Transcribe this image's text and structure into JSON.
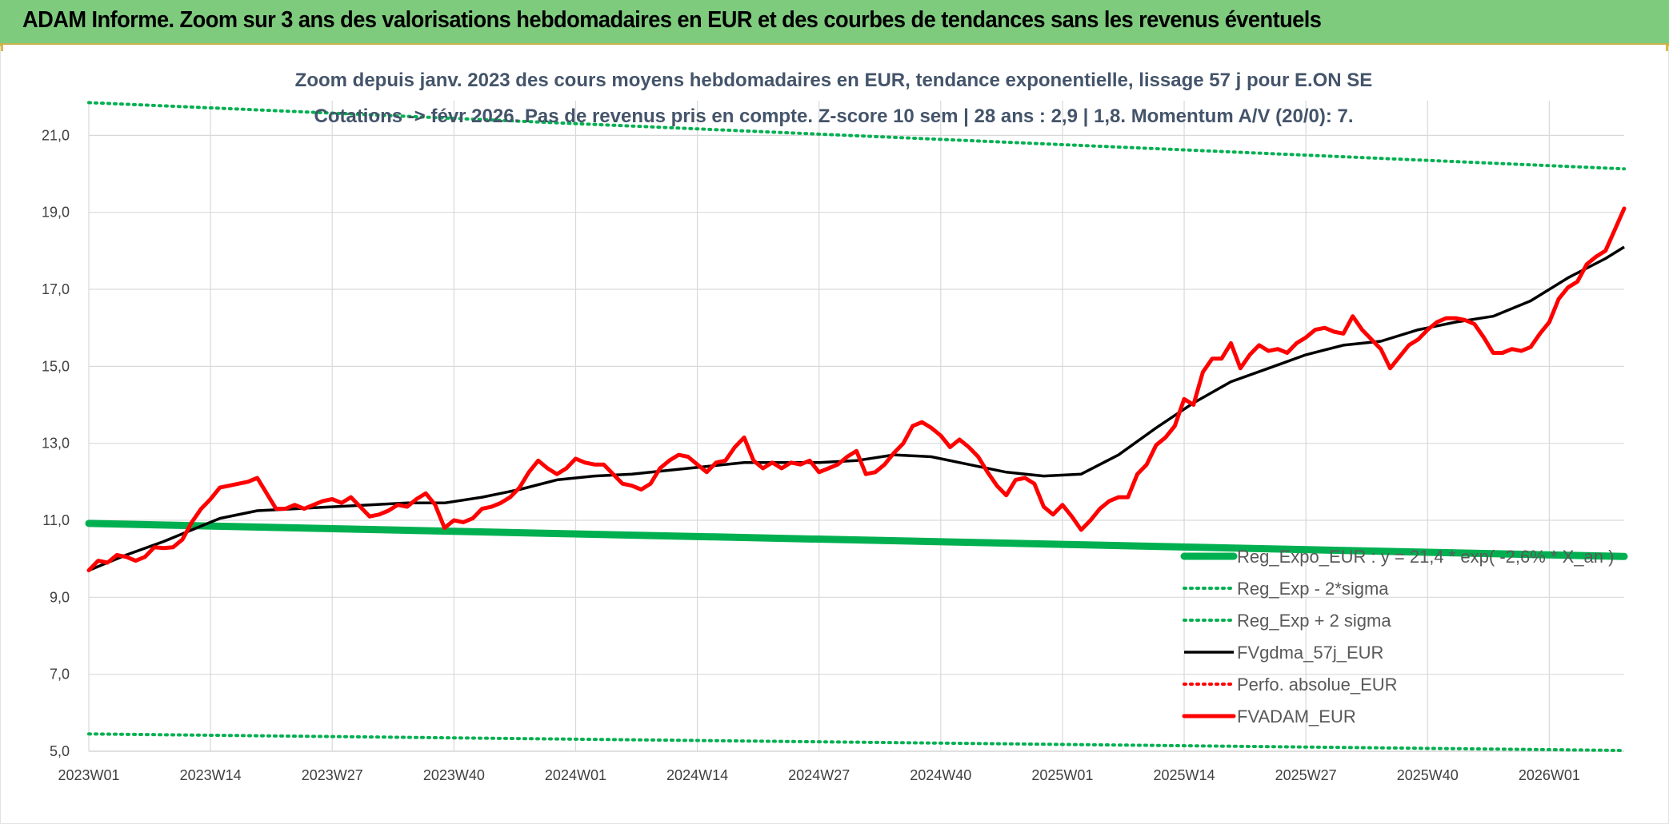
{
  "banner": {
    "title": "ADAM Informe. Zoom sur 3 ans des valorisations hebdomadaires en EUR et des courbes de tendances sans les revenus éventuels"
  },
  "colors": {
    "banner": "#7ecb7e",
    "trend": "#00b050",
    "smooth": "#000000",
    "price": "#ff0000",
    "title": "#44546a"
  },
  "chart_data": {
    "type": "line",
    "title_lines": [
      "Zoom depuis janv. 2023 des cours moyens hebdomadaires en EUR, tendance exponentielle, lissage 57 j pour E.ON SE",
      "Cotations -> févr 2026. Pas de revenus pris en compte. Z-score 10 sem | 28 ans : 2,9 | 1,8. Momentum A/V (20/0): 7."
    ],
    "xlabel": "",
    "ylabel": "",
    "ylim": [
      5.0,
      21.9
    ],
    "y_ticks": [
      "5,0",
      "7,0",
      "9,0",
      "11,0",
      "13,0",
      "15,0",
      "17,0",
      "19,0",
      "21,0"
    ],
    "y_tick_values": [
      5,
      7,
      9,
      11,
      13,
      15,
      17,
      19,
      21
    ],
    "x_ticks": [
      "2023W01",
      "2023W14",
      "2023W27",
      "2023W40",
      "2024W01",
      "2024W14",
      "2024W27",
      "2024W40",
      "2025W01",
      "2025W14",
      "2025W27",
      "2025W40",
      "2026W01"
    ],
    "x_tick_weeks": [
      1,
      14,
      27,
      40,
      53,
      66,
      79,
      92,
      105,
      118,
      131,
      144,
      157
    ],
    "x_range_weeks": [
      1,
      165
    ],
    "grid": true,
    "legend_position": "bottom-right",
    "series": [
      {
        "name": "Reg_Expo_EUR : y = 21,4 * exp( -2,6% * X_an )",
        "style": "solid-thick",
        "color": "#00b050",
        "x": [
          1,
          165
        ],
        "y": [
          10.92,
          10.06
        ]
      },
      {
        "name": "Reg_Exp - 2*sigma",
        "style": "dotted",
        "color": "#00b050",
        "x": [
          1,
          165
        ],
        "y": [
          5.45,
          5.02
        ]
      },
      {
        "name": "Reg_Exp + 2 sigma",
        "style": "dotted",
        "color": "#00b050",
        "x": [
          1,
          165
        ],
        "y": [
          21.85,
          20.13
        ]
      },
      {
        "name": "FVgdma_57j_EUR",
        "style": "solid",
        "color": "#000000",
        "x": [
          1,
          5,
          9,
          13,
          15,
          19,
          23,
          27,
          31,
          35,
          39,
          43,
          47,
          51,
          55,
          59,
          63,
          67,
          71,
          75,
          79,
          83,
          87,
          91,
          95,
          99,
          103,
          107,
          111,
          115,
          119,
          123,
          127,
          131,
          135,
          139,
          143,
          147,
          151,
          155,
          159,
          163,
          165
        ],
        "y": [
          9.7,
          10.1,
          10.45,
          10.85,
          11.05,
          11.25,
          11.3,
          11.35,
          11.4,
          11.45,
          11.45,
          11.6,
          11.8,
          12.05,
          12.15,
          12.2,
          12.3,
          12.4,
          12.5,
          12.5,
          12.5,
          12.55,
          12.7,
          12.65,
          12.45,
          12.25,
          12.15,
          12.2,
          12.7,
          13.4,
          14.05,
          14.6,
          14.95,
          15.3,
          15.55,
          15.65,
          15.95,
          16.15,
          16.3,
          16.7,
          17.3,
          17.8,
          18.1
        ]
      },
      {
        "name": "Perfo. absolue_EUR",
        "style": "dotted",
        "color": "#ff0000",
        "x": [],
        "y": []
      },
      {
        "name": "FVADAM_EUR",
        "style": "solid-thick",
        "color": "#ff0000",
        "x": [
          1,
          2,
          3,
          4,
          5,
          6,
          7,
          8,
          9,
          10,
          11,
          12,
          13,
          14,
          15,
          16,
          17,
          18,
          19,
          20,
          21,
          22,
          23,
          24,
          25,
          26,
          27,
          28,
          29,
          30,
          31,
          32,
          33,
          34,
          35,
          36,
          37,
          38,
          39,
          40,
          41,
          42,
          43,
          44,
          45,
          46,
          47,
          48,
          49,
          50,
          51,
          52,
          53,
          54,
          55,
          56,
          57,
          58,
          59,
          60,
          61,
          62,
          63,
          64,
          65,
          66,
          67,
          68,
          69,
          70,
          71,
          72,
          73,
          74,
          75,
          76,
          77,
          78,
          79,
          80,
          81,
          82,
          83,
          84,
          85,
          86,
          87,
          88,
          89,
          90,
          91,
          92,
          93,
          94,
          95,
          96,
          97,
          98,
          99,
          100,
          101,
          102,
          103,
          104,
          105,
          106,
          107,
          108,
          109,
          110,
          111,
          112,
          113,
          114,
          115,
          116,
          117,
          118,
          119,
          120,
          121,
          122,
          123,
          124,
          125,
          126,
          127,
          128,
          129,
          130,
          131,
          132,
          133,
          134,
          135,
          136,
          137,
          138,
          139,
          140,
          141,
          142,
          143,
          144,
          145,
          146,
          147,
          148,
          149,
          150,
          151,
          152,
          153,
          154,
          155,
          156,
          157,
          158,
          159,
          160,
          161,
          162,
          163,
          164,
          165
        ],
        "y": [
          9.7,
          9.95,
          9.9,
          10.1,
          10.05,
          9.95,
          10.05,
          10.3,
          10.28,
          10.3,
          10.5,
          10.95,
          11.3,
          11.55,
          11.85,
          11.9,
          11.95,
          12.0,
          12.1,
          11.7,
          11.3,
          11.3,
          11.4,
          11.3,
          11.4,
          11.5,
          11.55,
          11.45,
          11.6,
          11.35,
          11.1,
          11.15,
          11.25,
          11.4,
          11.35,
          11.55,
          11.7,
          11.4,
          10.8,
          11.0,
          10.95,
          11.05,
          11.3,
          11.35,
          11.45,
          11.6,
          11.85,
          12.25,
          12.55,
          12.35,
          12.2,
          12.35,
          12.6,
          12.5,
          12.45,
          12.45,
          12.2,
          11.95,
          11.9,
          11.8,
          11.95,
          12.35,
          12.55,
          12.7,
          12.65,
          12.45,
          12.25,
          12.5,
          12.55,
          12.9,
          13.15,
          12.55,
          12.35,
          12.5,
          12.35,
          12.5,
          12.45,
          12.55,
          12.25,
          12.35,
          12.45,
          12.65,
          12.8,
          12.2,
          12.25,
          12.45,
          12.75,
          13.0,
          13.45,
          13.55,
          13.4,
          13.2,
          12.9,
          13.1,
          12.9,
          12.65,
          12.25,
          11.9,
          11.65,
          12.05,
          12.1,
          11.95,
          11.35,
          11.15,
          11.4,
          11.1,
          10.75,
          11.0,
          11.3,
          11.5,
          11.6,
          11.6,
          12.2,
          12.45,
          12.95,
          13.15,
          13.45,
          14.15,
          14.0,
          14.85,
          15.2,
          15.2,
          15.6,
          14.95,
          15.3,
          15.55,
          15.4,
          15.45,
          15.35,
          15.6,
          15.75,
          15.95,
          16.0,
          15.9,
          15.85,
          16.3,
          15.95,
          15.7,
          15.45,
          14.95,
          15.25,
          15.55,
          15.7,
          15.95,
          16.15,
          16.25,
          16.25,
          16.2,
          16.1,
          15.75,
          15.35,
          15.35,
          15.45,
          15.4,
          15.5,
          15.85,
          16.15,
          16.75,
          17.05,
          17.2,
          17.65,
          17.85,
          18.0,
          18.55,
          19.1
        ]
      }
    ]
  }
}
